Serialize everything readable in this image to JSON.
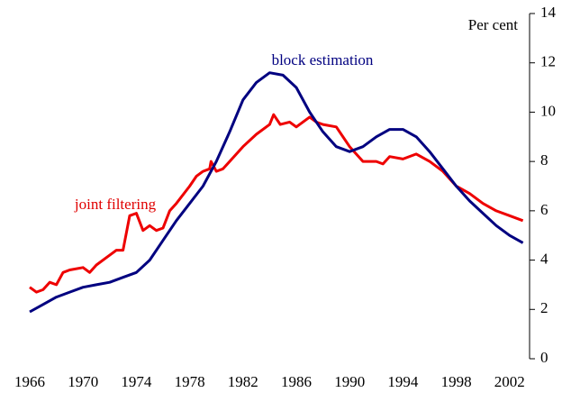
{
  "chart_data": {
    "type": "line",
    "y_label": "Per cent",
    "annotations": [
      "block estimation",
      "joint filtering"
    ],
    "xlim": [
      1966,
      2003.5
    ],
    "xticks": [
      1966,
      1970,
      1974,
      1978,
      1982,
      1986,
      1990,
      1994,
      1998,
      2002
    ],
    "ylim": [
      0,
      14
    ],
    "yticks": [
      0,
      2,
      4,
      6,
      8,
      10,
      12,
      14
    ],
    "series": [
      {
        "name": "joint filtering",
        "color": "#ee0000",
        "x": [
          1966.0,
          1966.5,
          1967.0,
          1967.5,
          1968.0,
          1968.5,
          1969.0,
          1970.0,
          1970.5,
          1971.0,
          1972.0,
          1972.5,
          1973.0,
          1973.5,
          1974.0,
          1974.5,
          1975.0,
          1975.5,
          1976.0,
          1976.5,
          1977.0,
          1978.0,
          1978.5,
          1979.0,
          1979.5,
          1979.6,
          1980.0,
          1980.5,
          1981.0,
          1982.0,
          1983.0,
          1984.0,
          1984.3,
          1984.8,
          1985.5,
          1986.0,
          1987.0,
          1987.5,
          1988.0,
          1989.0,
          1990.0,
          1991.0,
          1992.0,
          1992.5,
          1993.0,
          1994.0,
          1995.0,
          1996.0,
          1997.0,
          1998.0,
          1999.0,
          2000.0,
          2001.0,
          2002.0,
          2003.0
        ],
        "values": [
          2.9,
          2.7,
          2.8,
          3.1,
          3.0,
          3.5,
          3.6,
          3.7,
          3.5,
          3.8,
          4.2,
          4.4,
          4.4,
          5.8,
          5.9,
          5.2,
          5.4,
          5.2,
          5.3,
          6.0,
          6.3,
          7.0,
          7.4,
          7.6,
          7.7,
          8.0,
          7.6,
          7.7,
          8.0,
          8.6,
          9.1,
          9.5,
          9.9,
          9.5,
          9.6,
          9.4,
          9.8,
          9.6,
          9.5,
          9.4,
          8.6,
          8.0,
          8.0,
          7.9,
          8.2,
          8.1,
          8.3,
          8.0,
          7.6,
          7.0,
          6.7,
          6.3,
          6.0,
          5.8,
          5.6
        ]
      },
      {
        "name": "block estimation",
        "color": "#000080",
        "x": [
          1966,
          1967,
          1968,
          1969,
          1970,
          1971,
          1972,
          1973,
          1974,
          1975,
          1976,
          1977,
          1978,
          1979,
          1980,
          1981,
          1982,
          1983,
          1984,
          1985,
          1986,
          1987,
          1988,
          1989,
          1990,
          1991,
          1992,
          1993,
          1994,
          1995,
          1996,
          1997,
          1998,
          1999,
          2000,
          2001,
          2002,
          2003
        ],
        "values": [
          1.9,
          2.2,
          2.5,
          2.7,
          2.9,
          3.0,
          3.1,
          3.3,
          3.5,
          4.0,
          4.8,
          5.6,
          6.3,
          7.0,
          8.0,
          9.2,
          10.5,
          11.2,
          11.6,
          11.5,
          11.0,
          10.0,
          9.2,
          8.6,
          8.4,
          8.6,
          9.0,
          9.3,
          9.3,
          9.0,
          8.4,
          7.7,
          7.0,
          6.4,
          5.9,
          5.4,
          5.0,
          4.7
        ]
      }
    ]
  }
}
